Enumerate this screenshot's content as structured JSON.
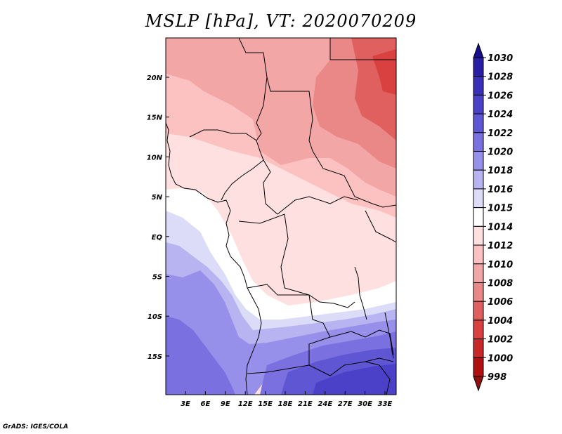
{
  "title": "MSLP [hPa], VT: 2020070209",
  "credit": "GrADS: IGES/COLA",
  "map": {
    "lon_ticks": [
      "3E",
      "6E",
      "9E",
      "12E",
      "15E",
      "18E",
      "21E",
      "24E",
      "27E",
      "30E",
      "33E"
    ],
    "lat_ticks": [
      "20N",
      "15N",
      "10N",
      "5N",
      "EQ",
      "5S",
      "10S",
      "15S"
    ]
  },
  "colorbar": {
    "levels": [
      "1030",
      "1028",
      "1026",
      "1024",
      "1022",
      "1020",
      "1018",
      "1016",
      "1015",
      "1014",
      "1012",
      "1010",
      "1008",
      "1006",
      "1004",
      "1002",
      "1000",
      "998"
    ],
    "colors": [
      "#1a0e8f",
      "#2a1da6",
      "#3a2fb8",
      "#4b40c8",
      "#5f56d4",
      "#7a70e0",
      "#9690ea",
      "#b8b4f2",
      "#dcdcf8",
      "#ffffff",
      "#ffe0e0",
      "#fcc2c2",
      "#f3a6a6",
      "#ea8888",
      "#e06060",
      "#d94040",
      "#c82828",
      "#b01010",
      "#901010"
    ]
  }
}
